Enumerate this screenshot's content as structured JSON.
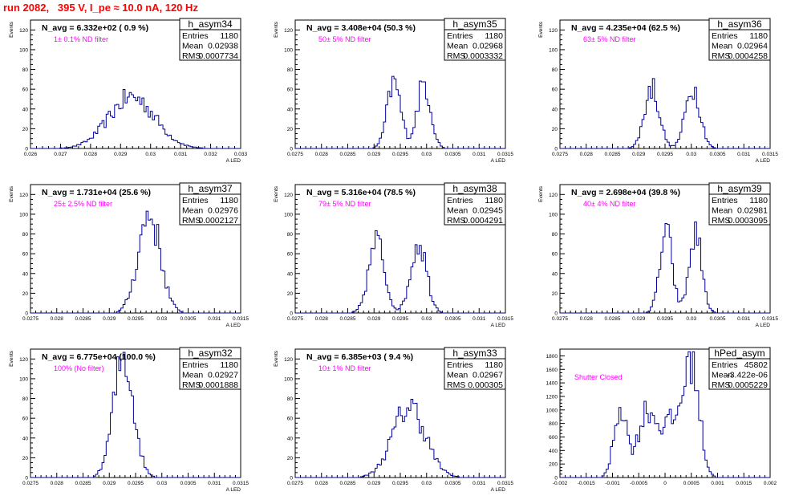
{
  "page": {
    "title": "run 2082,   395 V, I_pe ≈ 10.0 nA, 120 Hz"
  },
  "colors": {
    "title": "#ff0000",
    "histogram": "#000099",
    "annotation": "#ff00ff"
  },
  "chart_data": [
    {
      "type": "bar",
      "name": "h_asym34",
      "navg": "N_avg = 6.332e+02 ( 0.9 %)",
      "note": "1± 0.1% ND filter",
      "stats": [
        [
          "Entries",
          "1180"
        ],
        [
          "Mean",
          "0.02938"
        ],
        [
          "RMS",
          "0.0007734"
        ]
      ],
      "xlabel": "A_LED",
      "ylabel": "Events",
      "xlim": [
        0.026,
        0.033
      ],
      "ylim": [
        0,
        130
      ],
      "xticks": [
        "0.026",
        "0.027",
        "0.028",
        "0.029",
        "0.03",
        "0.031",
        "0.032",
        "0.033"
      ],
      "yticks": [
        "0",
        "20",
        "40",
        "60",
        "80",
        "100",
        "120"
      ],
      "hist": {
        "mean": 0.02938,
        "sigma": 0.00077,
        "peak": 52,
        "modes": []
      }
    },
    {
      "type": "bar",
      "name": "h_asym35",
      "navg": "N_avg = 3.408e+04 (50.3 %)",
      "note": "50± 5% ND filter",
      "stats": [
        [
          "Entries",
          "1180"
        ],
        [
          "Mean",
          "0.02968"
        ],
        [
          "RMS",
          "0.0003332"
        ]
      ],
      "xlabel": "A_LED",
      "ylabel": "Events",
      "xlim": [
        0.0275,
        0.0315
      ],
      "ylim": [
        0,
        130
      ],
      "xticks": [
        "0.0275",
        "0.028",
        "0.0285",
        "0.029",
        "0.0295",
        "0.03",
        "0.0305",
        "0.031",
        "0.0315"
      ],
      "yticks": [
        "0",
        "20",
        "40",
        "60",
        "80",
        "100",
        "120"
      ],
      "hist": {
        "mean": 0.02968,
        "sigma": 0.00033,
        "peak": 66,
        "modes": [
          [
            0.02938,
            0.00013,
            1.0
          ],
          [
            0.02995,
            0.00013,
            1.0
          ]
        ]
      }
    },
    {
      "type": "bar",
      "name": "h_asym36",
      "navg": "N_avg = 4.235e+04 (62.5 %)",
      "note": "63± 5% ND filter",
      "stats": [
        [
          "Entries",
          "1180"
        ],
        [
          "Mean",
          "0.02964"
        ],
        [
          "RMS",
          "0.0004258"
        ]
      ],
      "xlabel": "A_LED",
      "ylabel": "Events",
      "xlim": [
        0.0275,
        0.0315
      ],
      "ylim": [
        0,
        130
      ],
      "xticks": [
        "0.0275",
        "0.028",
        "0.0285",
        "0.029",
        "0.0295",
        "0.03",
        "0.0305",
        "0.031",
        "0.0315"
      ],
      "yticks": [
        "0",
        "20",
        "40",
        "60",
        "80",
        "100",
        "120"
      ],
      "hist": {
        "mean": 0.02964,
        "sigma": 0.00043,
        "peak": 62,
        "modes": [
          [
            0.02925,
            0.00014,
            1.0
          ],
          [
            0.03003,
            0.00014,
            1.0
          ]
        ]
      }
    },
    {
      "type": "bar",
      "name": "h_asym37",
      "navg": "N_avg = 1.731e+04 (25.6 %)",
      "note": "25± 2.5% ND filter",
      "stats": [
        [
          "Entries",
          "1180"
        ],
        [
          "Mean",
          "0.02976"
        ],
        [
          "RMS",
          "0.0002127"
        ]
      ],
      "xlabel": "A_LED",
      "ylabel": "Events",
      "xlim": [
        0.0275,
        0.0315
      ],
      "ylim": [
        0,
        130
      ],
      "xticks": [
        "0.0275",
        "0.028",
        "0.0285",
        "0.029",
        "0.0295",
        "0.03",
        "0.0305",
        "0.031",
        "0.0315"
      ],
      "yticks": [
        "0",
        "20",
        "40",
        "60",
        "80",
        "100",
        "120"
      ],
      "hist": {
        "mean": 0.02976,
        "sigma": 0.00021,
        "peak": 100,
        "modes": []
      }
    },
    {
      "type": "bar",
      "name": "h_asym38",
      "navg": "N_avg = 5.316e+04 (78.5 %)",
      "note": "79± 5% ND filter",
      "stats": [
        [
          "Entries",
          "1180"
        ],
        [
          "Mean",
          "0.02945"
        ],
        [
          "RMS",
          "0.0004291"
        ]
      ],
      "xlabel": "A_LED",
      "ylabel": "Events",
      "xlim": [
        0.0275,
        0.0315
      ],
      "ylim": [
        0,
        130
      ],
      "xticks": [
        "0.0275",
        "0.028",
        "0.0285",
        "0.029",
        "0.0295",
        "0.03",
        "0.0305",
        "0.031",
        "0.0315"
      ],
      "yticks": [
        "0",
        "20",
        "40",
        "60",
        "80",
        "100",
        "120"
      ],
      "hist": {
        "mean": 0.02945,
        "sigma": 0.00043,
        "peak": 72,
        "modes": [
          [
            0.02905,
            0.00015,
            1.0
          ],
          [
            0.02985,
            0.00015,
            1.0
          ]
        ]
      }
    },
    {
      "type": "bar",
      "name": "h_asym39",
      "navg": "N_avg = 2.698e+04 (39.8 %)",
      "note": "40± 4% ND filter",
      "stats": [
        [
          "Entries",
          "1180"
        ],
        [
          "Mean",
          "0.02981"
        ],
        [
          "RMS",
          "0.0003095"
        ]
      ],
      "xlabel": "A_LED",
      "ylabel": "Events",
      "xlim": [
        0.0275,
        0.0315
      ],
      "ylim": [
        0,
        130
      ],
      "xticks": [
        "0.0275",
        "0.028",
        "0.0285",
        "0.029",
        "0.0295",
        "0.03",
        "0.0305",
        "0.031",
        "0.0315"
      ],
      "yticks": [
        "0",
        "20",
        "40",
        "60",
        "80",
        "100",
        "120"
      ],
      "hist": {
        "mean": 0.02981,
        "sigma": 0.00031,
        "peak": 80,
        "modes": [
          [
            0.02952,
            0.00012,
            1.0
          ],
          [
            0.03008,
            0.00012,
            1.0
          ]
        ]
      }
    },
    {
      "type": "bar",
      "name": "h_asym32",
      "navg": "N_avg = 6.775e+04 (100.0 %)",
      "note": "100% (No filter)",
      "stats": [
        [
          "Entries",
          "1180"
        ],
        [
          "Mean",
          "0.02927"
        ],
        [
          "RMS",
          "0.0001888"
        ]
      ],
      "xlabel": "A_LED",
      "ylabel": "Events",
      "xlim": [
        0.0275,
        0.0315
      ],
      "ylim": [
        0,
        130
      ],
      "xticks": [
        "0.0275",
        "0.028",
        "0.0285",
        "0.029",
        "0.0295",
        "0.03",
        "0.0305",
        "0.031",
        "0.0315"
      ],
      "yticks": [
        "0",
        "20",
        "40",
        "60",
        "80",
        "100",
        "120"
      ],
      "hist": {
        "mean": 0.02927,
        "sigma": 0.00019,
        "peak": 122,
        "modes": []
      }
    },
    {
      "type": "bar",
      "name": "h_asym33",
      "navg": "N_avg = 6.385e+03 ( 9.4 %)",
      "note": "10± 1% ND filter",
      "stats": [
        [
          "Entries",
          "1180"
        ],
        [
          "Mean",
          "0.02967"
        ],
        [
          "RMS",
          "0.000305"
        ]
      ],
      "xlabel": "A_LED",
      "ylabel": "Events",
      "xlim": [
        0.0275,
        0.0315
      ],
      "ylim": [
        0,
        130
      ],
      "xticks": [
        "0.0275",
        "0.028",
        "0.0285",
        "0.029",
        "0.0295",
        "0.03",
        "0.0305",
        "0.031",
        "0.0315"
      ],
      "yticks": [
        "0",
        "20",
        "40",
        "60",
        "80",
        "100",
        "120"
      ],
      "hist": {
        "mean": 0.02967,
        "sigma": 0.00031,
        "peak": 72,
        "modes": []
      }
    },
    {
      "type": "bar",
      "name": "hPed_asym",
      "navg": "",
      "note": "Shutter Closed",
      "stats": [
        [
          "Entries",
          "45802"
        ],
        [
          "Mean",
          "-3.422e-06"
        ],
        [
          "RMS",
          "0.0005229"
        ]
      ],
      "xlabel": "",
      "ylabel": "",
      "xlim": [
        -0.002,
        0.002
      ],
      "ylim": [
        0,
        1900
      ],
      "xticks": [
        "-0.002",
        "-0.0015",
        "-0.001",
        "-0.0005",
        "0",
        "0.0005",
        "0.001",
        "0.0015",
        "0.002"
      ],
      "yticks": [
        "0",
        "200",
        "400",
        "600",
        "800",
        "1000",
        "1200",
        "1400",
        "1600",
        "1800"
      ],
      "hist": {
        "mean": 0,
        "sigma": 0.0005,
        "peak": 1780,
        "modes": [
          [
            -0.00085,
            0.00012,
            0.63
          ],
          [
            -0.00035,
            0.00017,
            0.56
          ],
          [
            0.0005,
            0.00015,
            1.0
          ],
          [
            0.0001,
            0.0002,
            0.45
          ]
        ]
      }
    }
  ]
}
